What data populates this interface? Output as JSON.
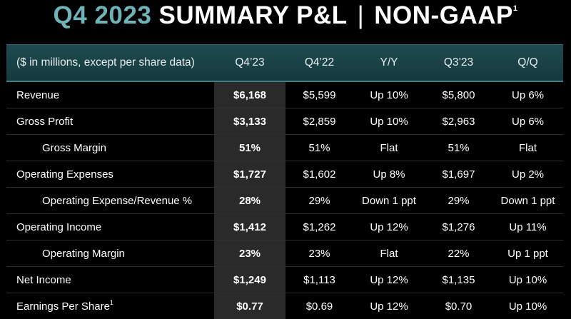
{
  "title": {
    "period": "Q4 2023",
    "main": "SUMMARY P&L",
    "separator": "|",
    "basis": "NON-GAAP",
    "footnote": "1"
  },
  "table": {
    "headers": [
      "($ in millions, except per share data)",
      "Q4’23",
      "Q4’22",
      "Y/Y",
      "Q3’23",
      "Q/Q"
    ],
    "rows": [
      {
        "label": "Revenue",
        "indent": false,
        "q4_23": "$6,168",
        "q4_22": "$5,599",
        "yy": "Up 10%",
        "q3_23": "$5,800",
        "qq": "Up 6%"
      },
      {
        "label": "Gross Profit",
        "indent": false,
        "q4_23": "$3,133",
        "q4_22": "$2,859",
        "yy": "Up 10%",
        "q3_23": "$2,963",
        "qq": "Up 6%"
      },
      {
        "label": "Gross Margin",
        "indent": true,
        "q4_23": "51%",
        "q4_22": "51%",
        "yy": "Flat",
        "q3_23": "51%",
        "qq": "Flat"
      },
      {
        "label": "Operating Expenses",
        "indent": false,
        "q4_23": "$1,727",
        "q4_22": "$1,602",
        "yy": "Up 8%",
        "q3_23": "$1,697",
        "qq": "Up 2%"
      },
      {
        "label": "Operating Expense/Revenue %",
        "indent": true,
        "q4_23": "28%",
        "q4_22": "29%",
        "yy": "Down 1 ppt",
        "q3_23": "29%",
        "qq": "Down 1 ppt"
      },
      {
        "label": "Operating Income",
        "indent": false,
        "q4_23": "$1,412",
        "q4_22": "$1,262",
        "yy": "Up 12%",
        "q3_23": "$1,276",
        "qq": "Up 11%"
      },
      {
        "label": "Operating Margin",
        "indent": true,
        "q4_23": "23%",
        "q4_22": "23%",
        "yy": "Flat",
        "q3_23": "22%",
        "qq": "Up 1 ppt"
      },
      {
        "label": "Net Income",
        "indent": false,
        "q4_23": "$1,249",
        "q4_22": "$1,113",
        "yy": "Up 12%",
        "q3_23": "$1,135",
        "qq": "Up 10%"
      },
      {
        "label": "Earnings Per Share",
        "footnote": "1",
        "indent": false,
        "q4_23": "$0.77",
        "q4_22": "$0.69",
        "yy": "Up 12%",
        "q3_23": "$0.70",
        "qq": "Up 10%"
      }
    ]
  },
  "colors": {
    "accent": "#6fb3b8",
    "header_bg": "#1e4a4f",
    "highlight_column": "#2a2a2a",
    "background": "#000000"
  }
}
